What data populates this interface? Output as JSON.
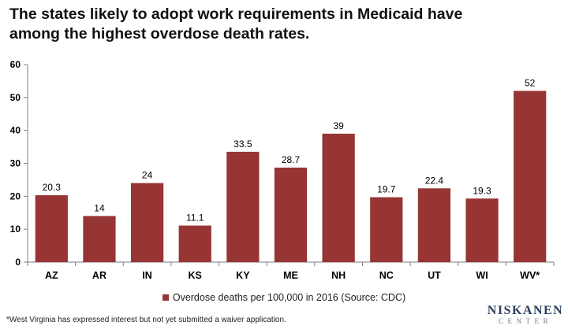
{
  "title": "The states likely to adopt work requirements in Medicaid have among the highest overdose death rates.",
  "footnote": "*West Virginia has expressed interest but not yet submitted a waiver application.",
  "brand": {
    "name": "NISKANEN",
    "sub": "CENTER",
    "name_color": "#2b3f5c",
    "sub_color": "#6f7d8c"
  },
  "colors": {
    "bar": "#973434",
    "axis": "#7f7f7f",
    "text": "#000000"
  },
  "chart_data": {
    "type": "bar",
    "categories": [
      "AZ",
      "AR",
      "IN",
      "KS",
      "KY",
      "ME",
      "NH",
      "NC",
      "UT",
      "WI",
      "WV*"
    ],
    "series": [
      {
        "name": "Overdose deaths per 100,000 in 2016 (Source: CDC)",
        "values": [
          20.3,
          14,
          24,
          11.1,
          33.5,
          28.7,
          39,
          19.7,
          22.4,
          19.3,
          52
        ]
      }
    ],
    "data_labels": [
      "20.3",
      "14",
      "24",
      "11.1",
      "33.5",
      "28.7",
      "39",
      "19.7",
      "22.4",
      "19.3",
      "52"
    ],
    "ylim": [
      0,
      60
    ],
    "yticks": [
      0,
      10,
      20,
      30,
      40,
      50,
      60
    ],
    "grid": false,
    "legend_position": "bottom"
  }
}
